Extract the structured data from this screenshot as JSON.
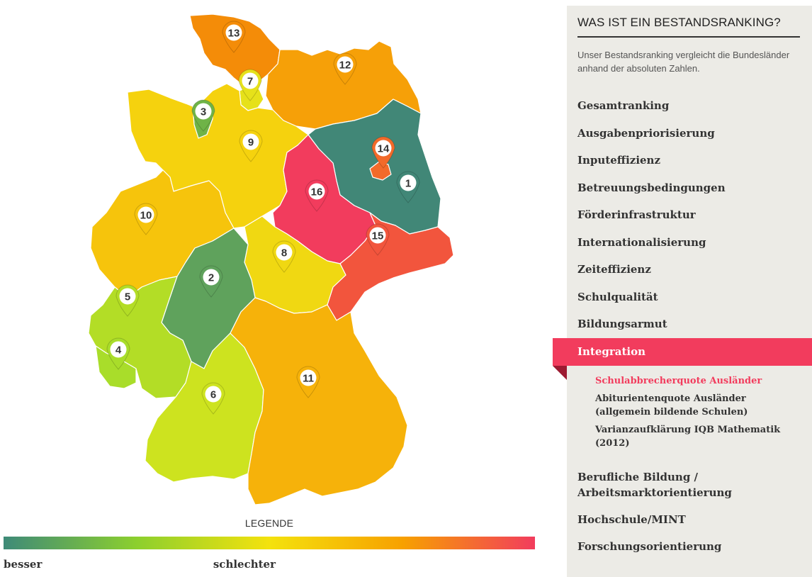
{
  "map": {
    "legend_title": "LEGENDE",
    "legend_low": "besser",
    "legend_high": "schlechter",
    "gradient": [
      "#3e8a78",
      "#8ccf2e",
      "#f4e20d",
      "#f7a100",
      "#f23c5d"
    ],
    "states": [
      {
        "rank": 1,
        "color": "#418777"
      },
      {
        "rank": 2,
        "color": "#5fa25c"
      },
      {
        "rank": 3,
        "color": "#6fb347"
      },
      {
        "rank": 4,
        "color": "#a9dd2a"
      },
      {
        "rank": 5,
        "color": "#b3dd26"
      },
      {
        "rank": 6,
        "color": "#cde31f"
      },
      {
        "rank": 7,
        "color": "#e6e11a"
      },
      {
        "rank": 8,
        "color": "#f0d812"
      },
      {
        "rank": 9,
        "color": "#f5d20e"
      },
      {
        "rank": 10,
        "color": "#f6c40c"
      },
      {
        "rank": 11,
        "color": "#f6b20a"
      },
      {
        "rank": 12,
        "color": "#f6a008"
      },
      {
        "rank": 13,
        "color": "#f48c08"
      },
      {
        "rank": 14,
        "color": "#f26a2a"
      },
      {
        "rank": 15,
        "color": "#f2553d"
      },
      {
        "rank": 16,
        "color": "#f23c5d"
      }
    ]
  },
  "sidebar": {
    "heading": "WAS IST EIN BESTANDSRANKING?",
    "description": "Unser Bestandsranking vergleicht die Bundesländer anhand der absoluten Zahlen.",
    "items": [
      {
        "label": "Gesamtranking"
      },
      {
        "label": "Ausgabenpriorisierung"
      },
      {
        "label": "Inputeffizienz"
      },
      {
        "label": "Betreuungsbedingungen"
      },
      {
        "label": "Förderinfrastruktur"
      },
      {
        "label": "Internationalisierung"
      },
      {
        "label": "Zeiteffizienz"
      },
      {
        "label": "Schulqualität"
      },
      {
        "label": "Bildungsarmut"
      },
      {
        "label": "Integration"
      },
      {
        "label": "Berufliche Bildung / Arbeitsmarktorientierung"
      },
      {
        "label": "Hochschule/MINT"
      },
      {
        "label": "Forschungsorientierung"
      }
    ],
    "active_item": "Integration",
    "sub_items": [
      {
        "label": "Schulabbrecherquote Ausländer",
        "active": true
      },
      {
        "label": "Abiturientenquote Ausländer (allgemein bildende Schulen)",
        "active": false
      },
      {
        "label": "Varianzaufklärung IQB Mathematik (2012)",
        "active": false
      }
    ]
  }
}
